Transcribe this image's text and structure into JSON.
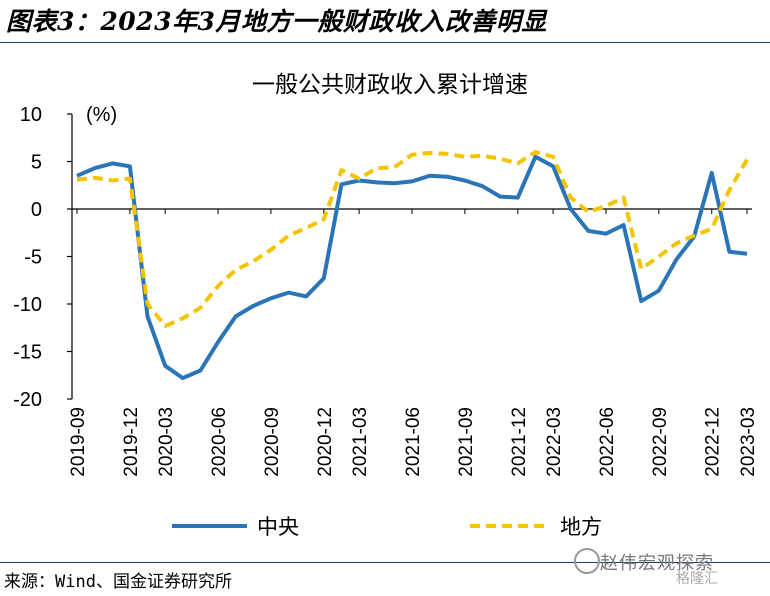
{
  "figure_title": "图表3：2023年3月地方一般财政收入改善明显",
  "source": "来源：Wind、国金证券研究所",
  "watermark": "赵伟宏观探索",
  "watermark_small": "格隆汇",
  "colors": {
    "central": "#2a74b8",
    "local": "#f5c400",
    "rule": "#1a3a78"
  },
  "chart_data": {
    "type": "line",
    "title": "一般公共财政收入累计增速",
    "unit_label": "(%)",
    "ylim": [
      -20,
      10
    ],
    "yticks": [
      10,
      5,
      0,
      -5,
      -10,
      -15,
      -20
    ],
    "x": [
      "2019-09",
      "2019-10",
      "2019-11",
      "2019-12",
      "2020-02",
      "2020-03",
      "2020-04",
      "2020-05",
      "2020-06",
      "2020-07",
      "2020-08",
      "2020-09",
      "2020-10",
      "2020-11",
      "2020-12",
      "2021-02",
      "2021-03",
      "2021-04",
      "2021-05",
      "2021-06",
      "2021-07",
      "2021-08",
      "2021-09",
      "2021-10",
      "2021-11",
      "2021-12",
      "2022-02",
      "2022-03",
      "2022-04",
      "2022-05",
      "2022-06",
      "2022-07",
      "2022-08",
      "2022-09",
      "2022-10",
      "2022-11",
      "2022-12",
      "2023-02",
      "2023-03"
    ],
    "xticks": [
      "2019-09",
      "2019-12",
      "2020-03",
      "2020-06",
      "2020-09",
      "2020-12",
      "2021-03",
      "2021-06",
      "2021-09",
      "2021-12",
      "2022-03",
      "2022-06",
      "2022-09",
      "2022-12",
      "2023-03"
    ],
    "legend_position": "bottom",
    "series": [
      {
        "name": "中央",
        "style": "solid",
        "values": [
          3.5,
          4.3,
          4.8,
          4.5,
          -11.3,
          -16.5,
          -17.8,
          -17.0,
          -14.0,
          -11.3,
          -10.2,
          -9.4,
          -8.8,
          -9.2,
          -7.3,
          2.6,
          3.0,
          2.8,
          2.7,
          2.9,
          3.5,
          3.4,
          3.0,
          2.4,
          1.3,
          1.2,
          5.5,
          4.5,
          0.0,
          -2.3,
          -2.6,
          -1.7,
          -9.7,
          -8.6,
          -5.3,
          -2.9,
          3.8,
          -4.5,
          -4.7
        ]
      },
      {
        "name": "地方",
        "style": "dashed",
        "values": [
          3.1,
          3.3,
          3.0,
          3.2,
          -10.0,
          -12.3,
          -11.5,
          -10.4,
          -8.1,
          -6.4,
          -5.5,
          -4.3,
          -2.8,
          -2.0,
          -1.1,
          4.1,
          3.2,
          4.3,
          4.4,
          5.7,
          5.9,
          5.8,
          5.5,
          5.6,
          5.3,
          4.8,
          6.0,
          5.5,
          1.2,
          -0.3,
          0.3,
          1.2,
          -6.3,
          -5.0,
          -3.6,
          -2.8,
          -2.1,
          2.0,
          5.2
        ]
      }
    ]
  }
}
